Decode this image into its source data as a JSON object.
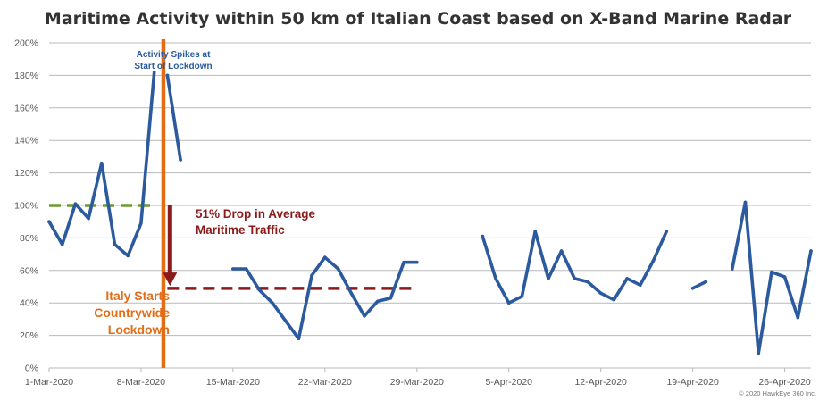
{
  "colors": {
    "series": "#2b5a9e",
    "baseline": "#6b9c2f",
    "drop": "#8b1a1a",
    "lockdown": "#e36d17",
    "grid": "#b9b9b9",
    "text": "#555555"
  },
  "chart_data": {
    "type": "line",
    "title": "Maritime Activity within 50 km of Italian Coast based on X-Band Marine Radar",
    "xlabel": "",
    "ylabel": "",
    "ylim": [
      0,
      200
    ],
    "xlim": [
      "2020-03-01",
      "2020-04-28"
    ],
    "grid": true,
    "y_ticks": [
      "0%",
      "20%",
      "40%",
      "60%",
      "80%",
      "100%",
      "120%",
      "140%",
      "160%",
      "180%",
      "200%"
    ],
    "x_ticks": [
      {
        "date": "2020-03-01",
        "label": "1-Mar-2020"
      },
      {
        "date": "2020-03-08",
        "label": "8-Mar-2020"
      },
      {
        "date": "2020-03-15",
        "label": "15-Mar-2020"
      },
      {
        "date": "2020-03-22",
        "label": "22-Mar-2020"
      },
      {
        "date": "2020-03-29",
        "label": "29-Mar-2020"
      },
      {
        "date": "2020-04-05",
        "label": "5-Apr-2020"
      },
      {
        "date": "2020-04-12",
        "label": "12-Apr-2020"
      },
      {
        "date": "2020-04-19",
        "label": "19-Apr-2020"
      },
      {
        "date": "2020-04-26",
        "label": "26-Apr-2020"
      }
    ],
    "series": [
      {
        "segments": [
          {
            "x": [
              "2020-03-01",
              "2020-03-02",
              "2020-03-03",
              "2020-03-04",
              "2020-03-05",
              "2020-03-06",
              "2020-03-07",
              "2020-03-08",
              "2020-03-09"
            ],
            "y": [
              90,
              76,
              101,
              92,
              126,
              76,
              69,
              89,
              182
            ]
          },
          {
            "x": [
              "2020-03-10",
              "2020-03-11"
            ],
            "y": [
              180,
              128
            ]
          },
          {
            "x": [
              "2020-03-15",
              "2020-03-16",
              "2020-03-17",
              "2020-03-18",
              "2020-03-19",
              "2020-03-20",
              "2020-03-21",
              "2020-03-22",
              "2020-03-23",
              "2020-03-24",
              "2020-03-25",
              "2020-03-26",
              "2020-03-27",
              "2020-03-28",
              "2020-03-29"
            ],
            "y": [
              61,
              61,
              48,
              40,
              29,
              18,
              57,
              68,
              61,
              46,
              32,
              41,
              43,
              65,
              65
            ]
          },
          {
            "x": [
              "2020-04-03",
              "2020-04-04",
              "2020-04-05",
              "2020-04-06",
              "2020-04-07",
              "2020-04-08",
              "2020-04-09",
              "2020-04-10",
              "2020-04-11",
              "2020-04-12",
              "2020-04-13",
              "2020-04-14",
              "2020-04-15",
              "2020-04-16",
              "2020-04-17"
            ],
            "y": [
              81,
              55,
              40,
              44,
              84,
              55,
              72,
              55,
              53,
              46,
              42,
              55,
              51,
              66,
              84
            ]
          },
          {
            "x": [
              "2020-04-19",
              "2020-04-20"
            ],
            "y": [
              49,
              53
            ]
          },
          {
            "x": [
              "2020-04-22",
              "2020-04-23",
              "2020-04-24",
              "2020-04-25",
              "2020-04-26",
              "2020-04-27",
              "2020-04-28"
            ],
            "y": [
              61,
              102,
              9,
              59,
              56,
              31,
              72
            ]
          }
        ]
      }
    ],
    "reference_lines": [
      {
        "kind": "pre-lockdown-average",
        "x_start": "2020-03-01",
        "x_end": "2020-03-09",
        "y": 100,
        "style": "dashed"
      },
      {
        "kind": "post-lockdown-average",
        "x_start": "2020-03-10",
        "x_end": "2020-03-29",
        "y": 49,
        "style": "dashed"
      }
    ],
    "lockdown_date": "2020-03-09.7",
    "drop_arrow": {
      "x": "2020-03-10.2",
      "y_from": 100,
      "y_to": 51
    },
    "annotations": {
      "spike": [
        "Activity Spikes at",
        "Start of Lockdown"
      ],
      "drop": [
        "51% Drop in Average",
        "Maritime Traffic"
      ],
      "lockdown": [
        "Italy Starts",
        "Countrywide",
        "Lockdown"
      ]
    },
    "copyright": "© 2020 HawkEye 360 Inc."
  }
}
